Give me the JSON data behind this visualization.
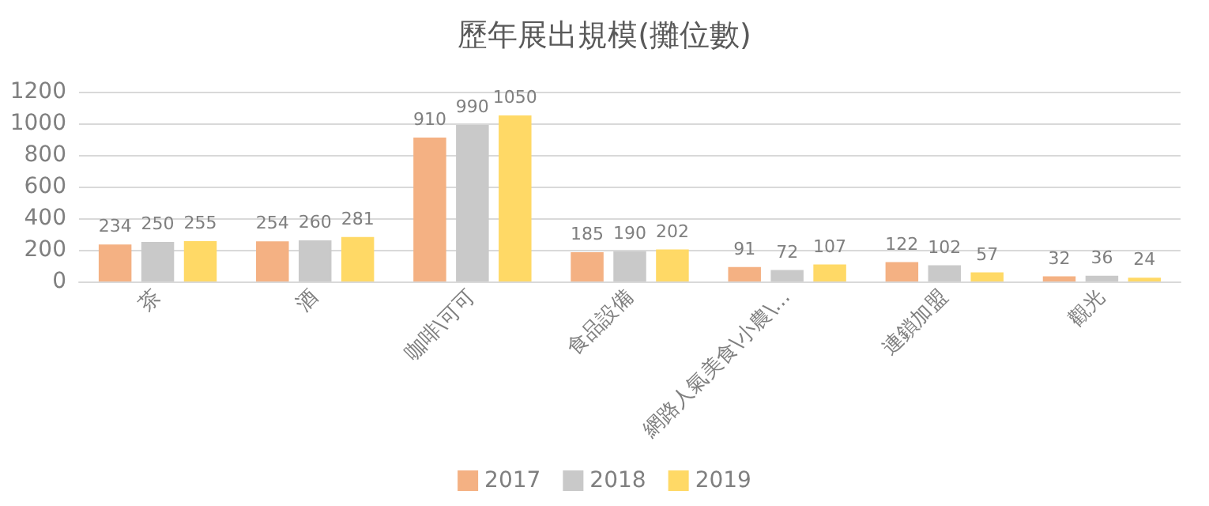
{
  "chart_data": {
    "type": "bar",
    "title": "歷年展出規模(攤位數)",
    "categories": [
      "茶",
      "酒",
      "咖啡\\可可",
      "食品設備",
      "網路人氣美食\\小農\\...",
      "連鎖加盟",
      "觀光"
    ],
    "series": [
      {
        "name": "2017",
        "color": "#f4b183",
        "values": [
          234,
          254,
          910,
          185,
          91,
          122,
          32
        ]
      },
      {
        "name": "2018",
        "color": "#c9c9c9",
        "values": [
          250,
          260,
          990,
          190,
          72,
          102,
          36
        ]
      },
      {
        "name": "2019",
        "color": "#ffd966",
        "values": [
          255,
          281,
          1050,
          202,
          107,
          57,
          24
        ]
      }
    ],
    "ylim": [
      0,
      1200
    ],
    "yticks": [
      0,
      200,
      400,
      600,
      800,
      1000,
      1200
    ],
    "grid": "y",
    "legend": "bottom",
    "data_labels": true
  }
}
